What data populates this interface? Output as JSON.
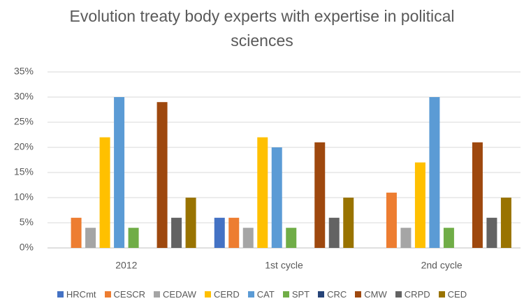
{
  "chart_data": {
    "type": "bar",
    "title": "Evolution treaty body experts with expertise in political sciences",
    "categories": [
      "2012",
      "1st cycle",
      "2nd cycle"
    ],
    "series": [
      {
        "name": "HRCmt",
        "color": "#4472c4",
        "values": [
          0,
          6,
          0
        ]
      },
      {
        "name": "CESCR",
        "color": "#ed7d31",
        "values": [
          6,
          6,
          11
        ]
      },
      {
        "name": "CEDAW",
        "color": "#a5a5a5",
        "values": [
          4,
          4,
          4
        ]
      },
      {
        "name": "CERD",
        "color": "#ffc000",
        "values": [
          22,
          22,
          17
        ]
      },
      {
        "name": "CAT",
        "color": "#5b9bd5",
        "values": [
          30,
          20,
          30
        ]
      },
      {
        "name": "SPT",
        "color": "#70ad47",
        "values": [
          4,
          4,
          4
        ]
      },
      {
        "name": "CRC",
        "color": "#264478",
        "values": [
          0,
          0,
          0
        ]
      },
      {
        "name": "CMW",
        "color": "#9e480e",
        "values": [
          29,
          21,
          21
        ]
      },
      {
        "name": "CRPD",
        "color": "#636363",
        "values": [
          6,
          6,
          6
        ]
      },
      {
        "name": "CED",
        "color": "#997300",
        "values": [
          10,
          10,
          10
        ]
      }
    ],
    "ylim": [
      0,
      35
    ],
    "yticks": [
      {
        "value": 0,
        "label": "0%"
      },
      {
        "value": 5,
        "label": "5%"
      },
      {
        "value": 10,
        "label": "10%"
      },
      {
        "value": 15,
        "label": "15%"
      },
      {
        "value": 20,
        "label": "20%"
      },
      {
        "value": 25,
        "label": "25%"
      },
      {
        "value": 30,
        "label": "30%"
      },
      {
        "value": 35,
        "label": "35%"
      }
    ],
    "grid": true,
    "legend": "bottom"
  }
}
